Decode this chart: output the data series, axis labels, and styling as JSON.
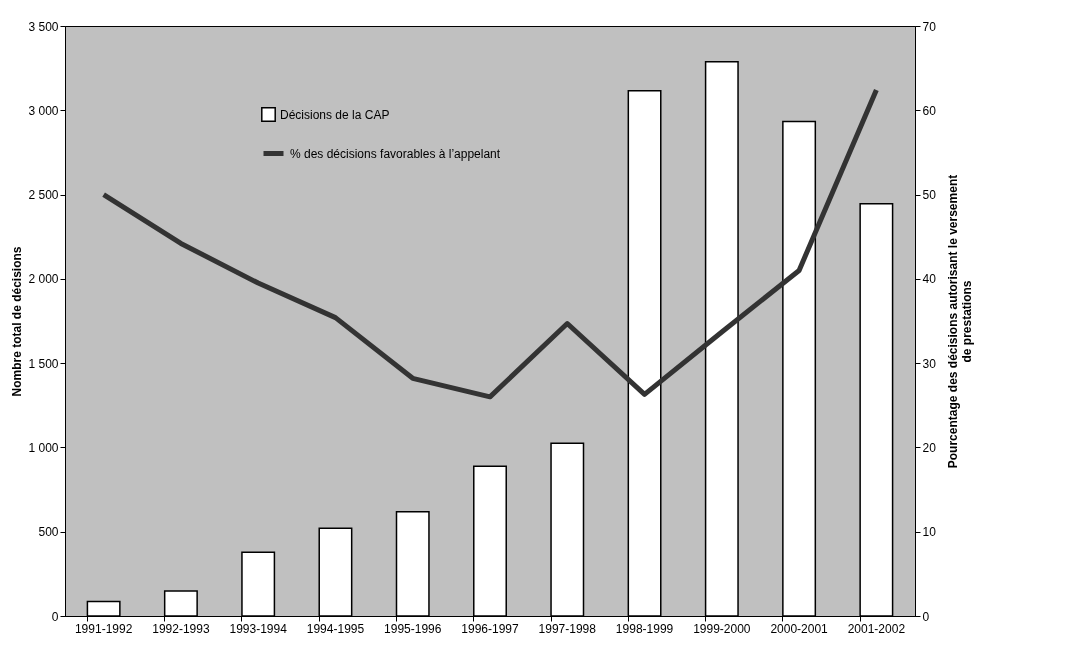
{
  "chart_data": {
    "type": "bar",
    "categories": [
      "1991-1992",
      "1992-1993",
      "1993-1994",
      "1994-1995",
      "1995-1996",
      "1996-1997",
      "1997-1998",
      "1998-1999",
      "1999-2000",
      "2000-2001",
      "2001-2002"
    ],
    "ylabel": "Nombre total de décisions",
    "y2label": "Pourcentage des décisions autorisant le versement de prestations",
    "series": [
      {
        "name": "Décisions de la CAP",
        "color": "#ffffff",
        "values": [
          86,
          149,
          378,
          521,
          619,
          888,
          1025,
          3116,
          3288,
          2933,
          2446
        ]
      },
      {
        "name": "% des décisions favorables à l’appelant",
        "type": "line",
        "axis": "y2",
        "color": "#333333",
        "values": [
          50,
          44.2,
          39.5,
          35.4,
          28.2,
          26,
          34.7,
          26.3,
          33.7,
          41,
          62.4
        ]
      }
    ],
    "ylim": [
      0,
      3500
    ],
    "yticks": [
      0,
      500,
      {
        "value": 1000,
        "label": "1 000"
      },
      {
        "value": 1500,
        "label": "1 500"
      },
      {
        "value": 2000,
        "label": "2 000"
      },
      {
        "value": 2500,
        "label": "2 500"
      },
      {
        "value": 3000,
        "label": "3 000"
      },
      {
        "value": 3500,
        "label": "3 500"
      }
    ],
    "y2lim": [
      0,
      70
    ],
    "y2ticks": [
      0,
      10,
      20,
      30,
      40,
      50,
      60,
      70
    ],
    "legend": "top",
    "grid": false,
    "marker": "none",
    "line_style": "solid"
  }
}
